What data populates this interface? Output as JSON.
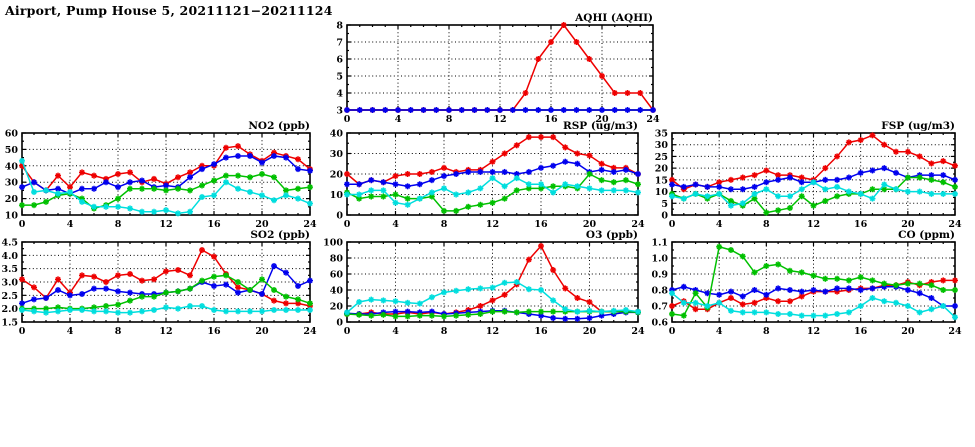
{
  "page_title": "Airport, Pump House 5, 20211121−20211124",
  "colors": {
    "red": "#ee0000",
    "blue": "#0000ee",
    "green": "#00c000",
    "cyan": "#00dede",
    "axis": "#000000",
    "grid": "#000000",
    "background": "#ffffff"
  },
  "chart_data": [
    {
      "id": "aqhi",
      "type": "line",
      "title": "AQHI (AQHI)",
      "xlabel": "",
      "ylabel": "",
      "xlim": [
        0,
        24
      ],
      "xticks": [
        0,
        4,
        8,
        12,
        16,
        20,
        24
      ],
      "xminor": 1,
      "ylim": [
        3,
        8
      ],
      "yticks": [
        3,
        4,
        5,
        6,
        7,
        8
      ],
      "ydecimals": 0,
      "grid": "dotted",
      "legend": "none",
      "x": [
        0,
        1,
        2,
        3,
        4,
        5,
        6,
        7,
        8,
        9,
        10,
        11,
        12,
        13,
        14,
        15,
        16,
        17,
        18,
        19,
        20,
        21,
        22,
        23,
        24
      ],
      "series": [
        {
          "name": "red",
          "values": [
            3,
            3,
            3,
            3,
            3,
            3,
            3,
            3,
            3,
            3,
            3,
            3,
            3,
            3,
            4,
            6,
            7,
            8,
            7,
            6,
            5,
            4,
            4,
            4,
            3
          ]
        },
        {
          "name": "blue",
          "values": [
            3,
            3,
            3,
            3,
            3,
            3,
            3,
            3,
            3,
            3,
            3,
            3,
            3,
            3,
            3,
            3,
            3,
            3,
            3,
            3,
            3,
            3,
            3,
            3,
            3
          ]
        }
      ]
    },
    {
      "id": "no2",
      "type": "line",
      "title": "NO2 (ppb)",
      "xlabel": "",
      "ylabel": "",
      "xlim": [
        0,
        24
      ],
      "xticks": [
        0,
        4,
        8,
        12,
        16,
        20,
        24
      ],
      "xminor": 1,
      "ylim": [
        10,
        60
      ],
      "yticks": [
        10,
        20,
        30,
        40,
        50,
        60
      ],
      "ydecimals": 0,
      "grid": "dotted",
      "legend": "none",
      "x": [
        0,
        1,
        2,
        3,
        4,
        5,
        6,
        7,
        8,
        9,
        10,
        11,
        12,
        13,
        14,
        15,
        16,
        17,
        18,
        19,
        20,
        21,
        22,
        23,
        24
      ],
      "series": [
        {
          "name": "red",
          "values": [
            40,
            30,
            25,
            34,
            27,
            36,
            34,
            32,
            35,
            36,
            30,
            32,
            29,
            33,
            36,
            40,
            40,
            51,
            52,
            47,
            43,
            48,
            46,
            44,
            38
          ]
        },
        {
          "name": "blue",
          "values": [
            27,
            30,
            25,
            26,
            23,
            26,
            26,
            30,
            27,
            30,
            31,
            27,
            28,
            27,
            33,
            38,
            41,
            45,
            46,
            46,
            42,
            46,
            45,
            38,
            37
          ]
        },
        {
          "name": "green",
          "values": [
            16,
            16,
            18,
            22,
            23,
            20,
            14,
            16,
            20,
            26,
            26,
            26,
            25,
            26,
            25,
            28,
            31,
            34,
            34,
            33,
            35,
            33,
            25,
            26,
            27
          ]
        },
        {
          "name": "cyan",
          "values": [
            43,
            24,
            25,
            23,
            24,
            18,
            15,
            15,
            15,
            14,
            12,
            12,
            13,
            11,
            12,
            21,
            22,
            30,
            26,
            24,
            22,
            19,
            22,
            20,
            17
          ]
        }
      ]
    },
    {
      "id": "rsp",
      "type": "line",
      "title": "RSP (ug/m3)",
      "xlabel": "",
      "ylabel": "",
      "xlim": [
        0,
        24
      ],
      "xticks": [
        0,
        4,
        8,
        12,
        16,
        20,
        24
      ],
      "xminor": 1,
      "ylim": [
        0,
        40
      ],
      "yticks": [
        0,
        10,
        20,
        30,
        40
      ],
      "ydecimals": 0,
      "grid": "dotted",
      "legend": "none",
      "x": [
        0,
        1,
        2,
        3,
        4,
        5,
        6,
        7,
        8,
        9,
        10,
        11,
        12,
        13,
        14,
        15,
        16,
        17,
        18,
        19,
        20,
        21,
        22,
        23,
        24
      ],
      "series": [
        {
          "name": "red",
          "values": [
            20,
            15,
            17,
            16,
            19,
            20,
            20,
            21,
            23,
            21,
            22,
            22,
            26,
            30,
            34,
            38,
            38,
            38,
            33,
            30,
            29,
            25,
            23,
            23,
            20
          ]
        },
        {
          "name": "blue",
          "values": [
            15,
            15,
            17,
            16,
            15,
            14,
            15,
            17,
            19,
            20,
            21,
            21,
            21,
            21,
            20,
            21,
            23,
            24,
            26,
            25,
            21,
            22,
            21,
            22,
            20
          ]
        },
        {
          "name": "green",
          "values": [
            11,
            8,
            9,
            9,
            10,
            8,
            8,
            9,
            2,
            2,
            4,
            5,
            6,
            8,
            12,
            13,
            13,
            14,
            14,
            13,
            20,
            17,
            16,
            17,
            15
          ]
        },
        {
          "name": "cyan",
          "values": [
            10,
            10,
            12,
            12,
            6,
            5,
            8,
            11,
            13,
            10,
            11,
            13,
            18,
            14,
            18,
            15,
            15,
            11,
            15,
            14,
            13,
            12,
            12,
            12,
            11
          ]
        }
      ]
    },
    {
      "id": "fsp",
      "type": "line",
      "title": "FSP (ug/m3)",
      "xlabel": "",
      "ylabel": "",
      "xlim": [
        0,
        24
      ],
      "xticks": [
        0,
        4,
        8,
        12,
        16,
        20,
        24
      ],
      "xminor": 1,
      "ylim": [
        0,
        35
      ],
      "yticks": [
        0,
        5,
        10,
        15,
        20,
        25,
        30,
        35
      ],
      "ydecimals": 0,
      "grid": "dotted",
      "legend": "none",
      "x": [
        0,
        1,
        2,
        3,
        4,
        5,
        6,
        7,
        8,
        9,
        10,
        11,
        12,
        13,
        14,
        15,
        16,
        17,
        18,
        19,
        20,
        21,
        22,
        23,
        24
      ],
      "series": [
        {
          "name": "red",
          "values": [
            15,
            11,
            13,
            12,
            14,
            15,
            16,
            17,
            19,
            17,
            17,
            16,
            15,
            20,
            25,
            31,
            32,
            34,
            30,
            27,
            27,
            25,
            22,
            23,
            21
          ]
        },
        {
          "name": "blue",
          "values": [
            13,
            12,
            13,
            12,
            12,
            11,
            11,
            12,
            14,
            15,
            16,
            14,
            14,
            15,
            15,
            16,
            18,
            19,
            20,
            18,
            16,
            17,
            17,
            17,
            15
          ]
        },
        {
          "name": "green",
          "values": [
            9,
            7,
            9,
            7,
            9,
            6,
            4,
            7,
            1,
            2,
            3,
            8,
            4,
            6,
            8,
            9,
            9,
            11,
            11,
            11,
            16,
            16,
            15,
            14,
            12
          ]
        },
        {
          "name": "cyan",
          "values": [
            8,
            7,
            9,
            8,
            9,
            4,
            5,
            9,
            11,
            8,
            8,
            11,
            14,
            11,
            12,
            10,
            9,
            7,
            13,
            11,
            10,
            10,
            9,
            9,
            9
          ]
        }
      ]
    },
    {
      "id": "so2",
      "type": "line",
      "title": "SO2 (ppb)",
      "xlabel": "",
      "ylabel": "",
      "xlim": [
        0,
        24
      ],
      "xticks": [
        0,
        4,
        8,
        12,
        16,
        20,
        24
      ],
      "xminor": 1,
      "ylim": [
        1.5,
        4.5
      ],
      "yticks": [
        1.5,
        2.0,
        2.5,
        3.0,
        3.5,
        4.0,
        4.5
      ],
      "ydecimals": 1,
      "grid": "dotted",
      "legend": "none",
      "x": [
        0,
        1,
        2,
        3,
        4,
        5,
        6,
        7,
        8,
        9,
        10,
        11,
        12,
        13,
        14,
        15,
        16,
        17,
        18,
        19,
        20,
        21,
        22,
        23,
        24
      ],
      "series": [
        {
          "name": "red",
          "values": [
            3.1,
            2.8,
            2.4,
            3.1,
            2.6,
            3.25,
            3.2,
            3.0,
            3.25,
            3.3,
            3.05,
            3.1,
            3.4,
            3.45,
            3.25,
            4.2,
            3.95,
            3.3,
            2.8,
            2.7,
            2.55,
            2.3,
            2.2,
            2.2,
            2.1
          ]
        },
        {
          "name": "blue",
          "values": [
            2.2,
            2.35,
            2.4,
            2.7,
            2.5,
            2.55,
            2.75,
            2.75,
            2.65,
            2.6,
            2.55,
            2.55,
            2.6,
            2.65,
            2.75,
            3.0,
            2.85,
            2.9,
            2.6,
            2.7,
            2.55,
            3.6,
            3.35,
            2.85,
            3.05
          ]
        },
        {
          "name": "green",
          "values": [
            2.0,
            2.0,
            2.0,
            2.05,
            2.0,
            2.0,
            2.05,
            2.1,
            2.15,
            2.3,
            2.45,
            2.45,
            2.6,
            2.65,
            2.75,
            3.05,
            3.2,
            3.25,
            3.0,
            2.7,
            3.1,
            2.7,
            2.45,
            2.35,
            2.2
          ]
        },
        {
          "name": "cyan",
          "values": [
            1.95,
            1.9,
            1.85,
            1.9,
            1.95,
            1.95,
            1.9,
            1.9,
            1.85,
            1.85,
            1.9,
            1.95,
            2.05,
            2.0,
            2.1,
            2.1,
            1.95,
            1.9,
            1.9,
            1.9,
            1.9,
            1.95,
            1.95,
            1.95,
            1.95
          ]
        }
      ]
    },
    {
      "id": "o3",
      "type": "line",
      "title": "O3 (ppb)",
      "xlabel": "",
      "ylabel": "",
      "xlim": [
        0,
        24
      ],
      "xticks": [
        0,
        4,
        8,
        12,
        16,
        20,
        24
      ],
      "xminor": 1,
      "ylim": [
        0,
        100
      ],
      "yticks": [
        0,
        20,
        40,
        60,
        80,
        100
      ],
      "ydecimals": 0,
      "grid": "dotted",
      "legend": "none",
      "x": [
        0,
        1,
        2,
        3,
        4,
        5,
        6,
        7,
        8,
        9,
        10,
        11,
        12,
        13,
        14,
        15,
        16,
        17,
        18,
        19,
        20,
        21,
        22,
        23,
        24
      ],
      "series": [
        {
          "name": "red",
          "values": [
            10,
            10,
            12,
            10,
            10,
            12,
            10,
            12,
            10,
            12,
            15,
            20,
            27,
            34,
            47,
            78,
            95,
            65,
            42,
            30,
            25,
            13,
            13,
            13,
            13
          ]
        },
        {
          "name": "blue",
          "values": [
            11,
            10,
            10,
            12,
            13,
            13,
            12,
            13,
            10,
            11,
            12,
            13,
            14,
            14,
            12,
            10,
            8,
            5,
            4,
            4,
            5,
            8,
            10,
            12,
            12
          ]
        },
        {
          "name": "green",
          "values": [
            10,
            9,
            8,
            9,
            7,
            7,
            8,
            8,
            7,
            8,
            9,
            10,
            13,
            13,
            12,
            13,
            13,
            13,
            13,
            13,
            13,
            13,
            13,
            13,
            12
          ]
        },
        {
          "name": "cyan",
          "values": [
            12,
            25,
            28,
            27,
            26,
            24,
            23,
            31,
            37,
            39,
            41,
            42,
            43,
            49,
            50,
            41,
            40,
            27,
            16,
            13,
            14,
            13,
            14,
            15,
            13
          ]
        }
      ]
    },
    {
      "id": "co",
      "type": "line",
      "title": "CO (ppm)",
      "xlabel": "",
      "ylabel": "",
      "xlim": [
        0,
        24
      ],
      "xticks": [
        0,
        4,
        8,
        12,
        16,
        20,
        24
      ],
      "xminor": 1,
      "ylim": [
        0.6,
        1.1
      ],
      "yticks": [
        0.6,
        0.7,
        0.8,
        0.9,
        1.0,
        1.1
      ],
      "ydecimals": 1,
      "grid": "dotted",
      "legend": "none",
      "x": [
        0,
        1,
        2,
        3,
        4,
        5,
        6,
        7,
        8,
        9,
        10,
        11,
        12,
        13,
        14,
        15,
        16,
        17,
        18,
        19,
        20,
        21,
        22,
        23,
        24
      ],
      "series": [
        {
          "name": "red",
          "values": [
            0.7,
            0.73,
            0.68,
            0.68,
            0.72,
            0.75,
            0.71,
            0.72,
            0.75,
            0.73,
            0.73,
            0.76,
            0.79,
            0.79,
            0.79,
            0.8,
            0.81,
            0.81,
            0.83,
            0.83,
            0.85,
            0.83,
            0.85,
            0.86,
            0.86
          ]
        },
        {
          "name": "blue",
          "values": [
            0.8,
            0.82,
            0.8,
            0.78,
            0.77,
            0.79,
            0.76,
            0.8,
            0.77,
            0.81,
            0.8,
            0.79,
            0.8,
            0.79,
            0.81,
            0.81,
            0.8,
            0.81,
            0.82,
            0.82,
            0.8,
            0.78,
            0.75,
            0.7,
            0.7
          ]
        },
        {
          "name": "green",
          "values": [
            0.65,
            0.64,
            0.78,
            0.69,
            1.07,
            1.05,
            1.01,
            0.91,
            0.95,
            0.96,
            0.92,
            0.91,
            0.89,
            0.87,
            0.87,
            0.86,
            0.88,
            0.86,
            0.84,
            0.83,
            0.84,
            0.84,
            0.83,
            0.8,
            0.8
          ]
        },
        {
          "name": "cyan",
          "values": [
            0.78,
            0.72,
            0.72,
            0.7,
            0.72,
            0.67,
            0.66,
            0.66,
            0.66,
            0.65,
            0.65,
            0.64,
            0.64,
            0.64,
            0.65,
            0.66,
            0.7,
            0.75,
            0.73,
            0.72,
            0.7,
            0.66,
            0.68,
            0.7,
            0.63
          ]
        }
      ]
    }
  ]
}
